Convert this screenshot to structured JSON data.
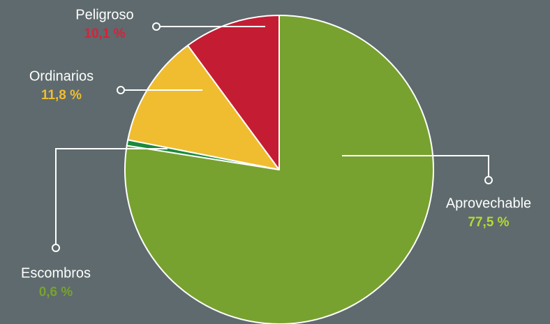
{
  "chart_data": {
    "type": "pie",
    "categories": [
      "Aprovechable",
      "Escombros",
      "Ordinarios",
      "Peligroso"
    ],
    "values": [
      77.5,
      0.6,
      11.8,
      10.1
    ],
    "value_labels": [
      "77,5 %",
      "0,6 %",
      "11,8 %",
      "10,1 %"
    ],
    "colors": [
      "#77a22f",
      "#1a8a3c",
      "#f0bd31",
      "#c41d33"
    ],
    "label_colors": [
      "#b5d935",
      "#77a22f",
      "#f0bd31",
      "#d9213a"
    ]
  }
}
